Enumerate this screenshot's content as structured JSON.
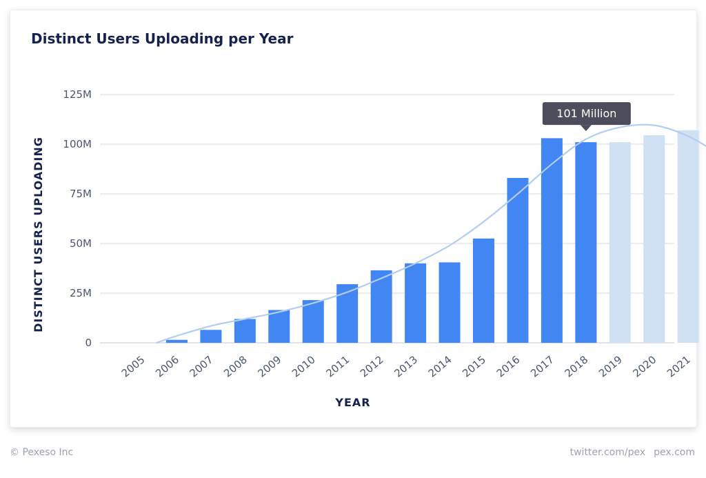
{
  "chart_data": {
    "type": "bar",
    "title": "Distinct Users Uploading per Year",
    "xlabel": "YEAR",
    "ylabel": "DISTINCT USERS UPLOADING",
    "ylim": [
      0,
      125
    ],
    "yunit": "M",
    "yticks": [
      0,
      25,
      50,
      75,
      100,
      125
    ],
    "ytick_labels": [
      "0",
      "25M",
      "50M",
      "75M",
      "100M",
      "125M"
    ],
    "grid": true,
    "categories": [
      "2005",
      "2006",
      "2007",
      "2008",
      "2009",
      "2010",
      "2011",
      "2012",
      "2013",
      "2014",
      "2015",
      "2016",
      "2017",
      "2018",
      "2019",
      "2020",
      "2021"
    ],
    "series": [
      {
        "values": [
          0,
          1.5,
          6.5,
          12,
          16.5,
          21.5,
          29.5,
          36.5,
          40,
          40.5,
          52.5,
          83,
          103,
          101,
          101,
          104.5,
          107
        ]
      }
    ],
    "projected_categories": [
      "2019",
      "2020",
      "2021"
    ],
    "trendline": [
      [
        2005.4,
        0
      ],
      [
        2006,
        3.5
      ],
      [
        2007,
        8.5
      ],
      [
        2008,
        12
      ],
      [
        2009,
        15.5
      ],
      [
        2010,
        20
      ],
      [
        2011,
        25.5
      ],
      [
        2012,
        32.5
      ],
      [
        2013,
        40
      ],
      [
        2014,
        49
      ],
      [
        2015,
        61
      ],
      [
        2016,
        75
      ],
      [
        2017,
        90
      ],
      [
        2018,
        102.5
      ],
      [
        2019,
        108.5
      ],
      [
        2020,
        109.5
      ],
      [
        2021,
        104
      ],
      [
        2021.9,
        95
      ]
    ],
    "annotation": {
      "category": "2018",
      "text": "101 Million"
    },
    "colors": {
      "actual": "#4286f4",
      "projected": "#cfe1f3",
      "trend": "#b2cdf3",
      "grid": "#d6d9df",
      "axis_text": "#4a5573",
      "title": "#14224d",
      "tooltip_bg": "#4c4d5a"
    }
  },
  "footer": {
    "copyright": "© Pexeso Inc",
    "twitter": "twitter.com/pex",
    "site": "pex.com"
  }
}
